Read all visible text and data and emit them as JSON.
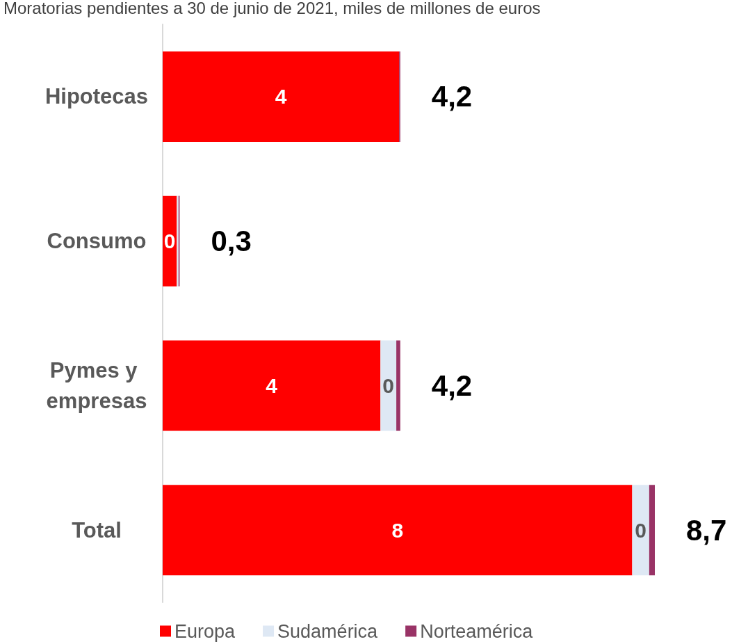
{
  "chart_data": {
    "type": "bar",
    "orientation": "horizontal",
    "stacked": true,
    "title": "Moratorias pendientes a 30 de junio de 2021, miles de millones de euros",
    "categories": [
      "Hipotecas",
      "Consumo",
      "Pymes y empresas",
      "Total"
    ],
    "series": [
      {
        "name": "Europa",
        "color": "#ff0000",
        "values": [
          4.18,
          0.25,
          3.85,
          8.3
        ],
        "value_labels": [
          "4",
          "0",
          "4",
          "8"
        ]
      },
      {
        "name": "Sudamérica",
        "color": "#dee8f4",
        "values": [
          null,
          0.03,
          0.28,
          0.3
        ],
        "value_labels": [
          null,
          null,
          "0",
          "0"
        ]
      },
      {
        "name": "Norteamérica",
        "color": "#993366",
        "values": [
          0.02,
          0.02,
          0.07,
          0.1
        ],
        "value_labels": [
          null,
          null,
          null,
          null
        ]
      }
    ],
    "totals": [
      "4,2",
      "0,3",
      "4,2",
      "8,7"
    ],
    "legend": "bottom",
    "grid": false
  }
}
